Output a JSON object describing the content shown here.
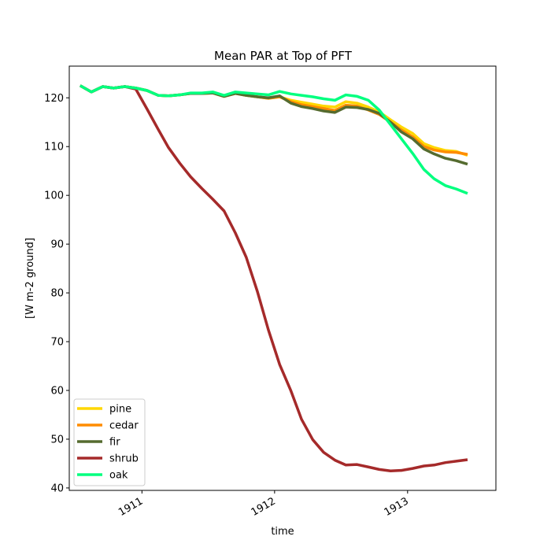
{
  "chart_data": {
    "type": "line",
    "title": "Mean PAR at Top of PFT",
    "xlabel": "time",
    "ylabel": "[W m-2 ground]",
    "x_ticks": [
      "1911",
      "1912",
      "1913"
    ],
    "y_ticks": [
      "40",
      "50",
      "60",
      "70",
      "80",
      "90",
      "100",
      "110",
      "120"
    ],
    "xlim": [
      "1910-06-15",
      "1913-09-01"
    ],
    "ylim": [
      39.5,
      126.5
    ],
    "grid": false,
    "legend_position": "lower left",
    "x": [
      "1910-07-15",
      "1910-08-15",
      "1910-09-15",
      "1910-10-15",
      "1910-11-15",
      "1910-12-15",
      "1911-01-15",
      "1911-02-15",
      "1911-03-15",
      "1911-04-15",
      "1911-05-15",
      "1911-06-15",
      "1911-07-15",
      "1911-08-15",
      "1911-09-15",
      "1911-10-15",
      "1911-11-15",
      "1911-12-15",
      "1912-01-15",
      "1912-02-15",
      "1912-03-15",
      "1912-04-15",
      "1912-05-15",
      "1912-06-15",
      "1912-07-15",
      "1912-08-15",
      "1912-09-15",
      "1912-10-15",
      "1912-11-15",
      "1912-12-15",
      "1913-01-15",
      "1913-02-15",
      "1913-03-15",
      "1913-04-15",
      "1913-05-15",
      "1913-06-15"
    ],
    "series": [
      {
        "name": "pine",
        "color": "#ffd700",
        "values": [
          122.5,
          121.2,
          122.3,
          122.0,
          122.3,
          122.0,
          121.5,
          120.5,
          120.4,
          120.6,
          120.9,
          120.9,
          121.0,
          120.3,
          120.9,
          120.5,
          120.2,
          119.9,
          120.2,
          119.5,
          119.1,
          118.7,
          118.3,
          118.1,
          119.2,
          118.9,
          118.1,
          117.1,
          115.5,
          114.0,
          112.7,
          110.6,
          109.8,
          109.2,
          109.0,
          108.2
        ]
      },
      {
        "name": "cedar",
        "color": "#ff8c00",
        "values": [
          122.5,
          121.2,
          122.3,
          122.0,
          122.3,
          122.0,
          121.5,
          120.5,
          120.4,
          120.6,
          120.9,
          120.9,
          121.0,
          120.3,
          120.9,
          120.5,
          120.2,
          119.9,
          120.2,
          119.2,
          118.6,
          118.2,
          117.8,
          117.4,
          118.5,
          118.3,
          117.5,
          116.6,
          115.0,
          113.4,
          112.0,
          110.0,
          109.3,
          108.9,
          108.8,
          108.4
        ]
      },
      {
        "name": "fir",
        "color": "#556b2f",
        "values": [
          122.5,
          121.2,
          122.3,
          122.0,
          122.3,
          122.0,
          121.5,
          120.5,
          120.4,
          120.6,
          120.9,
          120.9,
          121.0,
          120.3,
          120.9,
          120.5,
          120.2,
          120.0,
          120.4,
          118.9,
          118.2,
          117.8,
          117.3,
          117.0,
          118.1,
          118.0,
          117.6,
          116.8,
          115.0,
          113.0,
          111.6,
          109.5,
          108.5,
          107.6,
          107.1,
          106.4
        ]
      },
      {
        "name": "shrub",
        "color": "#a52a2a",
        "values": [
          122.5,
          121.2,
          122.3,
          122.0,
          122.3,
          121.8,
          117.7,
          113.5,
          109.8,
          106.6,
          103.8,
          101.4,
          99.2,
          96.8,
          92.3,
          87.3,
          80.2,
          72.4,
          65.3,
          59.9,
          54.1,
          49.9,
          47.3,
          45.7,
          44.7,
          44.8,
          44.3,
          43.8,
          43.5,
          43.6,
          44.0,
          44.5,
          44.7,
          45.2,
          45.5,
          45.8
        ]
      },
      {
        "name": "oak",
        "color": "#00ff7f",
        "values": [
          122.5,
          121.2,
          122.3,
          122.0,
          122.3,
          122.0,
          121.5,
          120.5,
          120.4,
          120.6,
          121.0,
          121.0,
          121.2,
          120.5,
          121.2,
          121.0,
          120.8,
          120.6,
          121.3,
          120.8,
          120.5,
          120.2,
          119.8,
          119.5,
          120.6,
          120.3,
          119.5,
          117.5,
          114.5,
          111.6,
          108.6,
          105.3,
          103.4,
          102.0,
          101.3,
          100.4
        ]
      }
    ]
  }
}
